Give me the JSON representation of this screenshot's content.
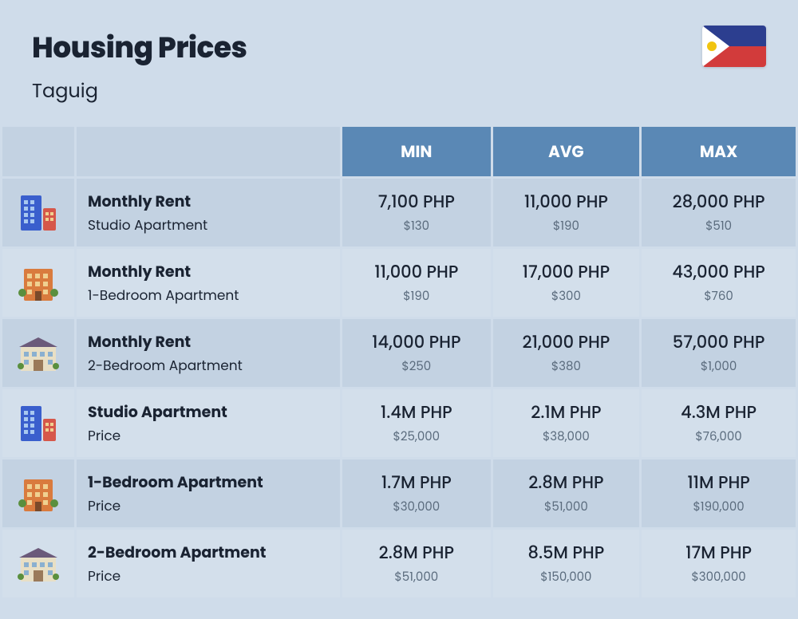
{
  "header": {
    "title": "Housing Prices",
    "subtitle": "Taguig",
    "flag_colors": {
      "top": "#2c3e8f",
      "bottom": "#d23b3b",
      "triangle": "#ffffff",
      "sun": "#f1c40f"
    }
  },
  "columns": {
    "min": "MIN",
    "avg": "AVG",
    "max": "MAX"
  },
  "colors": {
    "page_bg": "#cfdcea",
    "header_bg": "#5a88b5",
    "header_text": "#ffffff",
    "row_odd": "#c3d2e2",
    "row_even": "#d3dfeb",
    "text_main": "#1a2332",
    "text_sub": "#5a6b7d"
  },
  "rows": [
    {
      "icon": "building-tall",
      "title": "Monthly Rent",
      "subtitle": "Studio Apartment",
      "min": {
        "main": "7,100 PHP",
        "sub": "$130"
      },
      "avg": {
        "main": "11,000 PHP",
        "sub": "$190"
      },
      "max": {
        "main": "28,000 PHP",
        "sub": "$510"
      }
    },
    {
      "icon": "building-orange",
      "title": "Monthly Rent",
      "subtitle": "1-Bedroom Apartment",
      "min": {
        "main": "11,000 PHP",
        "sub": "$190"
      },
      "avg": {
        "main": "17,000 PHP",
        "sub": "$300"
      },
      "max": {
        "main": "43,000 PHP",
        "sub": "$760"
      }
    },
    {
      "icon": "house-wide",
      "title": "Monthly Rent",
      "subtitle": "2-Bedroom Apartment",
      "min": {
        "main": "14,000 PHP",
        "sub": "$250"
      },
      "avg": {
        "main": "21,000 PHP",
        "sub": "$380"
      },
      "max": {
        "main": "57,000 PHP",
        "sub": "$1,000"
      }
    },
    {
      "icon": "building-tall",
      "title": "Studio Apartment",
      "subtitle": "Price",
      "min": {
        "main": "1.4M PHP",
        "sub": "$25,000"
      },
      "avg": {
        "main": "2.1M PHP",
        "sub": "$38,000"
      },
      "max": {
        "main": "4.3M PHP",
        "sub": "$76,000"
      }
    },
    {
      "icon": "building-orange",
      "title": "1-Bedroom Apartment",
      "subtitle": "Price",
      "min": {
        "main": "1.7M PHP",
        "sub": "$30,000"
      },
      "avg": {
        "main": "2.8M PHP",
        "sub": "$51,000"
      },
      "max": {
        "main": "11M PHP",
        "sub": "$190,000"
      }
    },
    {
      "icon": "house-wide",
      "title": "2-Bedroom Apartment",
      "subtitle": "Price",
      "min": {
        "main": "2.8M PHP",
        "sub": "$51,000"
      },
      "avg": {
        "main": "8.5M PHP",
        "sub": "$150,000"
      },
      "max": {
        "main": "17M PHP",
        "sub": "$300,000"
      }
    }
  ],
  "icon_palette": {
    "building-tall": {
      "main": "#3a5fcd",
      "accent": "#d6574a",
      "window": "#a8c8f0"
    },
    "building-orange": {
      "main": "#d97b3e",
      "accent": "#5a8f3e",
      "window": "#f0d090"
    },
    "house-wide": {
      "main": "#e8dfc5",
      "roof": "#6b5a7a",
      "window": "#8ab0d0"
    }
  }
}
